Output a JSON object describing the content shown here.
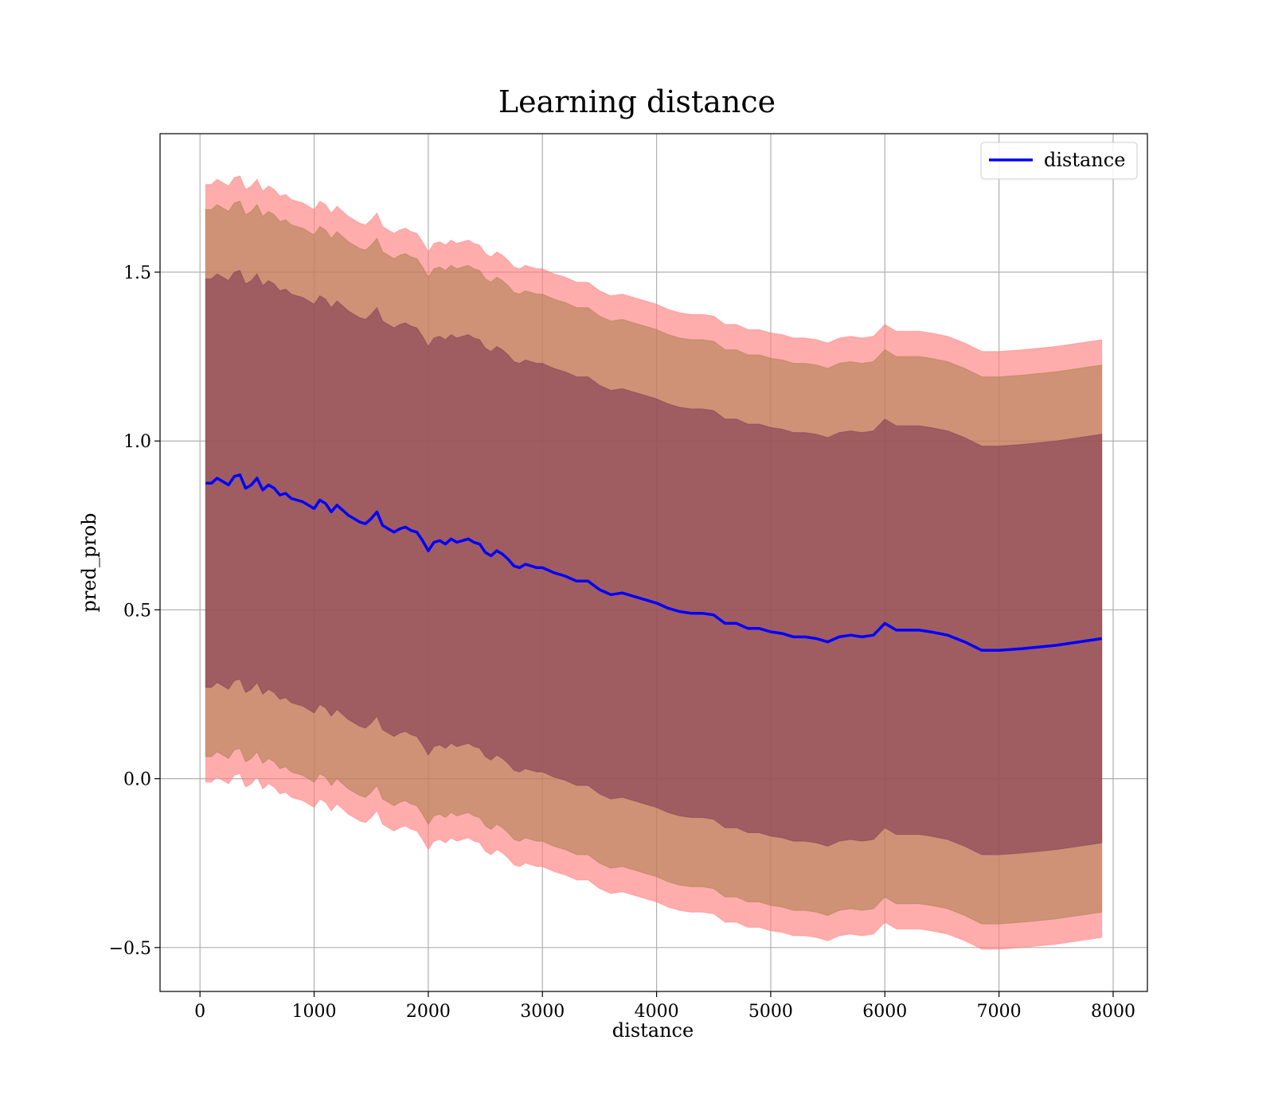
{
  "chart_data": {
    "type": "line",
    "title": "Learning distance",
    "xlabel": "distance",
    "ylabel": "pred_prob",
    "xlim": [
      -350,
      8300
    ],
    "ylim": [
      -0.63,
      1.91
    ],
    "x_ticks": [
      0,
      1000,
      2000,
      3000,
      4000,
      5000,
      6000,
      7000,
      8000
    ],
    "x_tick_labels": [
      "0",
      "1000",
      "2000",
      "3000",
      "4000",
      "5000",
      "6000",
      "7000",
      "8000"
    ],
    "y_ticks": [
      -0.5,
      0.0,
      0.5,
      1.0,
      1.5
    ],
    "y_tick_labels": [
      "−0.5",
      "0.0",
      "0.5",
      "1.0",
      "1.5"
    ],
    "grid": true,
    "legend_position": "upper right",
    "band_colors": {
      "outer": "#ff8080",
      "middle": "#a77d4a",
      "inner": "#7e3b55"
    },
    "band_opacities": {
      "outer": 0.65,
      "middle": 0.55,
      "inner": 0.6
    },
    "band_offsets": {
      "outer": 0.885,
      "middle": 0.81,
      "inner": 0.605
    },
    "series": [
      {
        "name": "distance",
        "color": "#0000ff",
        "x": [
          50,
          100,
          150,
          200,
          250,
          300,
          350,
          400,
          450,
          500,
          550,
          600,
          650,
          700,
          750,
          800,
          850,
          900,
          950,
          1000,
          1050,
          1100,
          1150,
          1200,
          1250,
          1300,
          1350,
          1400,
          1450,
          1500,
          1550,
          1600,
          1650,
          1700,
          1750,
          1800,
          1850,
          1900,
          1950,
          2000,
          2050,
          2100,
          2150,
          2200,
          2250,
          2300,
          2350,
          2400,
          2450,
          2500,
          2550,
          2600,
          2650,
          2700,
          2750,
          2800,
          2850,
          2900,
          2950,
          3000,
          3100,
          3200,
          3300,
          3400,
          3500,
          3600,
          3700,
          3800,
          3900,
          4000,
          4100,
          4200,
          4300,
          4400,
          4500,
          4600,
          4700,
          4800,
          4900,
          5000,
          5100,
          5200,
          5300,
          5400,
          5500,
          5600,
          5700,
          5800,
          5900,
          6000,
          6100,
          6200,
          6300,
          6400,
          6550,
          6700,
          6850,
          7000,
          7200,
          7500,
          7900
        ],
        "values": [
          0.875,
          0.875,
          0.89,
          0.88,
          0.87,
          0.895,
          0.9,
          0.86,
          0.87,
          0.89,
          0.855,
          0.87,
          0.86,
          0.84,
          0.845,
          0.83,
          0.825,
          0.82,
          0.81,
          0.8,
          0.825,
          0.815,
          0.79,
          0.81,
          0.795,
          0.78,
          0.77,
          0.76,
          0.755,
          0.77,
          0.79,
          0.75,
          0.74,
          0.73,
          0.74,
          0.745,
          0.735,
          0.73,
          0.705,
          0.675,
          0.7,
          0.705,
          0.695,
          0.71,
          0.7,
          0.705,
          0.71,
          0.7,
          0.695,
          0.67,
          0.66,
          0.675,
          0.665,
          0.65,
          0.63,
          0.625,
          0.635,
          0.63,
          0.625,
          0.625,
          0.61,
          0.6,
          0.585,
          0.585,
          0.56,
          0.545,
          0.55,
          0.54,
          0.53,
          0.52,
          0.505,
          0.495,
          0.49,
          0.49,
          0.485,
          0.46,
          0.46,
          0.445,
          0.445,
          0.435,
          0.43,
          0.42,
          0.42,
          0.415,
          0.405,
          0.42,
          0.425,
          0.42,
          0.425,
          0.46,
          0.44,
          0.44,
          0.44,
          0.435,
          0.425,
          0.405,
          0.38,
          0.38,
          0.385,
          0.395,
          0.415
        ]
      }
    ]
  }
}
